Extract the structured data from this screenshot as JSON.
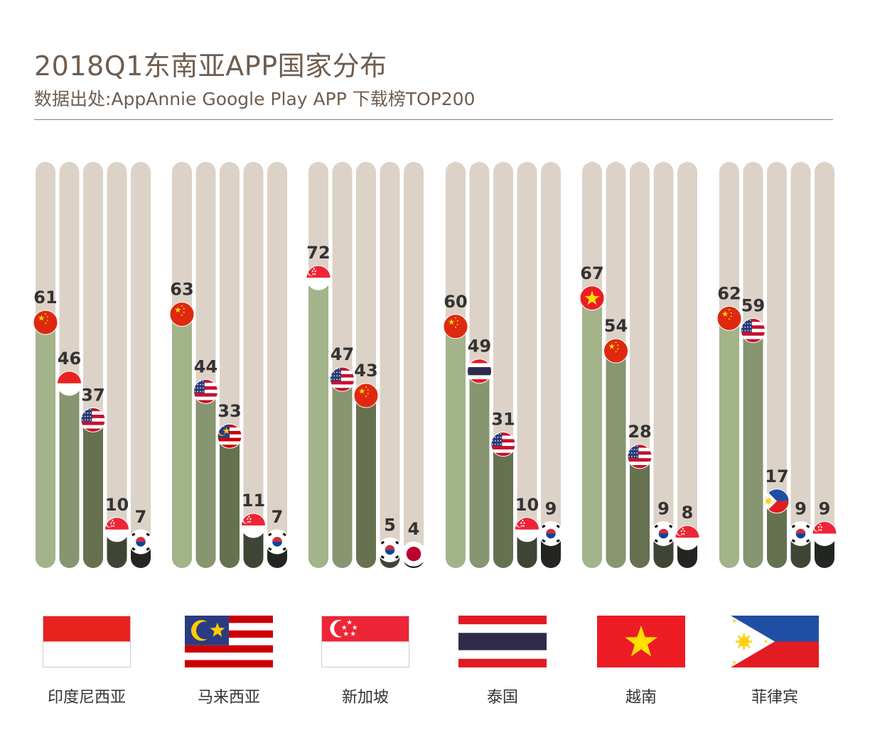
{
  "title": "2018Q1东南亚APP国家分布",
  "subtitle": "数据出处:AppAnnie Google Play APP 下载榜TOP200",
  "colors": {
    "track": "#ddd2c7",
    "bar_shades": [
      "#a3b38a",
      "#879570",
      "#667150",
      "#3e4534",
      "#232620"
    ],
    "label": "#333333",
    "title": "#6f5d4f"
  },
  "chart_data": {
    "type": "bar",
    "ylim": [
      0,
      100
    ],
    "groups": [
      {
        "country": "印度尼西亚",
        "flag_icon": "indonesia-flag-icon",
        "bars": [
          {
            "value": 61,
            "icon": "china-flag-icon"
          },
          {
            "value": 46,
            "icon": "indonesia-flag-icon"
          },
          {
            "value": 37,
            "icon": "usa-flag-icon"
          },
          {
            "value": 10,
            "icon": "singapore-flag-icon"
          },
          {
            "value": 7,
            "icon": "korea-flag-icon"
          }
        ]
      },
      {
        "country": "马来西亚",
        "flag_icon": "malaysia-flag-icon",
        "bars": [
          {
            "value": 63,
            "icon": "china-flag-icon"
          },
          {
            "value": 44,
            "icon": "usa-flag-icon"
          },
          {
            "value": 33,
            "icon": "malaysia-flag-icon"
          },
          {
            "value": 11,
            "icon": "singapore-flag-icon"
          },
          {
            "value": 7,
            "icon": "korea-flag-icon"
          }
        ]
      },
      {
        "country": "新加坡",
        "flag_icon": "singapore-flag-icon",
        "bars": [
          {
            "value": 72,
            "icon": "singapore-flag-icon"
          },
          {
            "value": 47,
            "icon": "usa-flag-icon"
          },
          {
            "value": 43,
            "icon": "china-flag-icon"
          },
          {
            "value": 5,
            "icon": "korea-flag-icon"
          },
          {
            "value": 4,
            "icon": "japan-flag-icon"
          }
        ]
      },
      {
        "country": "泰国",
        "flag_icon": "thailand-flag-icon",
        "bars": [
          {
            "value": 60,
            "icon": "china-flag-icon"
          },
          {
            "value": 49,
            "icon": "thailand-flag-icon"
          },
          {
            "value": 31,
            "icon": "usa-flag-icon"
          },
          {
            "value": 10,
            "icon": "singapore-flag-icon"
          },
          {
            "value": 9,
            "icon": "korea-flag-icon"
          }
        ]
      },
      {
        "country": "越南",
        "flag_icon": "vietnam-flag-icon",
        "bars": [
          {
            "value": 67,
            "icon": "vietnam-flag-icon"
          },
          {
            "value": 54,
            "icon": "china-flag-icon"
          },
          {
            "value": 28,
            "icon": "usa-flag-icon"
          },
          {
            "value": 9,
            "icon": "korea-flag-icon"
          },
          {
            "value": 8,
            "icon": "singapore-flag-icon"
          }
        ]
      },
      {
        "country": "菲律宾",
        "flag_icon": "philippines-flag-icon",
        "bars": [
          {
            "value": 62,
            "icon": "china-flag-icon"
          },
          {
            "value": 59,
            "icon": "usa-flag-icon"
          },
          {
            "value": 17,
            "icon": "philippines-flag-icon"
          },
          {
            "value": 9,
            "icon": "korea-flag-icon"
          },
          {
            "value": 9,
            "icon": "singapore-flag-icon"
          }
        ]
      }
    ]
  }
}
